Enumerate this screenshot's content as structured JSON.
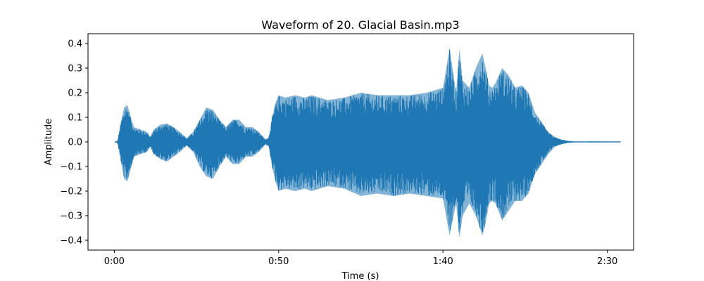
{
  "chart_data": {
    "type": "area",
    "title": "Waveform of 20. Glacial Basin.mp3",
    "xlabel": "Time (s)",
    "ylabel": "Amplitude",
    "xlim": [
      -8,
      158
    ],
    "ylim": [
      -0.44,
      0.44
    ],
    "x_ticks": [
      {
        "value": 0,
        "label": "0:00"
      },
      {
        "value": 50,
        "label": "0:50"
      },
      {
        "value": 100,
        "label": "1:40"
      },
      {
        "value": 150,
        "label": "2:30"
      }
    ],
    "y_ticks": [
      {
        "value": 0.4,
        "label": "0.4"
      },
      {
        "value": 0.3,
        "label": "0.3"
      },
      {
        "value": 0.2,
        "label": "0.2"
      },
      {
        "value": 0.1,
        "label": "0.1"
      },
      {
        "value": 0.0,
        "label": "0.0"
      },
      {
        "value": -0.1,
        "label": "−0.1"
      },
      {
        "value": -0.2,
        "label": "−0.2"
      },
      {
        "value": -0.3,
        "label": "−0.3"
      },
      {
        "value": -0.4,
        "label": "−0.4"
      }
    ],
    "grid": false,
    "series": [
      {
        "color": "#1f77b4",
        "envelope": {
          "time": [
            0,
            1,
            2,
            3,
            4,
            5,
            6,
            8,
            10,
            11,
            12,
            14,
            16,
            18,
            20,
            22,
            24,
            26,
            28,
            30,
            32,
            34,
            36,
            38,
            40,
            42,
            44,
            46,
            47,
            48,
            49,
            50,
            52,
            55,
            58,
            60,
            65,
            70,
            75,
            80,
            85,
            90,
            95,
            100,
            102,
            104,
            105,
            106,
            108,
            110,
            112,
            113,
            114,
            115,
            116,
            118,
            120,
            122,
            124,
            126,
            128,
            130,
            132,
            134,
            136,
            138,
            140,
            142,
            144,
            146,
            148,
            150,
            152,
            154
          ],
          "upper": [
            0.0,
            0.005,
            0.08,
            0.14,
            0.15,
            0.1,
            0.06,
            0.05,
            0.04,
            0.02,
            0.05,
            0.07,
            0.075,
            0.06,
            0.04,
            0.015,
            0.04,
            0.09,
            0.14,
            0.13,
            0.09,
            0.06,
            0.09,
            0.09,
            0.06,
            0.06,
            0.04,
            0.01,
            0.02,
            0.1,
            0.155,
            0.19,
            0.18,
            0.19,
            0.18,
            0.19,
            0.17,
            0.18,
            0.2,
            0.19,
            0.19,
            0.19,
            0.2,
            0.22,
            0.38,
            0.2,
            0.38,
            0.25,
            0.22,
            0.3,
            0.36,
            0.3,
            0.23,
            0.22,
            0.24,
            0.3,
            0.27,
            0.22,
            0.23,
            0.2,
            0.12,
            0.08,
            0.04,
            0.02,
            0.01,
            0.004,
            0.002,
            0.002,
            0.002,
            0.002,
            0.002,
            0.002,
            0.002,
            0.002
          ],
          "lower": [
            0.0,
            -0.005,
            -0.08,
            -0.15,
            -0.16,
            -0.11,
            -0.06,
            -0.05,
            -0.04,
            -0.02,
            -0.05,
            -0.07,
            -0.08,
            -0.06,
            -0.04,
            -0.015,
            -0.04,
            -0.1,
            -0.14,
            -0.15,
            -0.1,
            -0.06,
            -0.09,
            -0.09,
            -0.06,
            -0.06,
            -0.04,
            -0.01,
            -0.02,
            -0.1,
            -0.16,
            -0.2,
            -0.19,
            -0.2,
            -0.19,
            -0.2,
            -0.18,
            -0.19,
            -0.22,
            -0.21,
            -0.22,
            -0.21,
            -0.22,
            -0.23,
            -0.38,
            -0.25,
            -0.39,
            -0.3,
            -0.25,
            -0.3,
            -0.38,
            -0.33,
            -0.25,
            -0.24,
            -0.25,
            -0.32,
            -0.28,
            -0.24,
            -0.24,
            -0.21,
            -0.13,
            -0.09,
            -0.05,
            -0.02,
            -0.01,
            -0.004,
            -0.002,
            -0.002,
            -0.002,
            -0.002,
            -0.002,
            -0.002,
            -0.002,
            -0.002
          ]
        }
      }
    ]
  }
}
